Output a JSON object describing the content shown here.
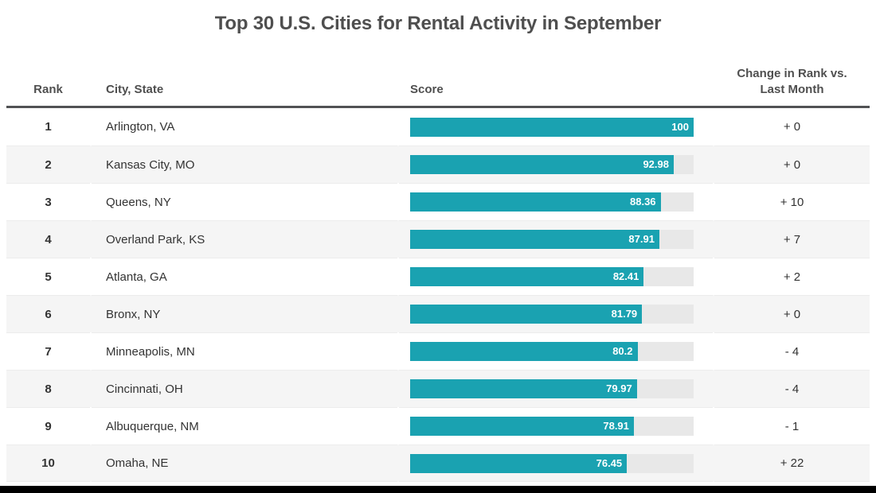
{
  "title": "Top 30 U.S. Cities for Rental Activity in September",
  "header": {
    "rank": "Rank",
    "city": "City, State",
    "score": "Score",
    "change_line1": "Change in Rank vs.",
    "change_line2": "Last Month"
  },
  "rows": [
    {
      "rank": "1",
      "city": "Arlington, VA",
      "score": 100,
      "score_label": "100",
      "change": "+ 0"
    },
    {
      "rank": "2",
      "city": "Kansas City, MO",
      "score": 92.98,
      "score_label": "92.98",
      "change": "+ 0"
    },
    {
      "rank": "3",
      "city": "Queens, NY",
      "score": 88.36,
      "score_label": "88.36",
      "change": "+ 10"
    },
    {
      "rank": "4",
      "city": "Overland Park, KS",
      "score": 87.91,
      "score_label": "87.91",
      "change": "+ 7"
    },
    {
      "rank": "5",
      "city": "Atlanta, GA",
      "score": 82.41,
      "score_label": "82.41",
      "change": "+ 2"
    },
    {
      "rank": "6",
      "city": "Bronx, NY",
      "score": 81.79,
      "score_label": "81.79",
      "change": "+ 0"
    },
    {
      "rank": "7",
      "city": "Minneapolis, MN",
      "score": 80.2,
      "score_label": "80.2",
      "change": "- 4"
    },
    {
      "rank": "8",
      "city": "Cincinnati, OH",
      "score": 79.97,
      "score_label": "79.97",
      "change": "- 4"
    },
    {
      "rank": "9",
      "city": "Albuquerque, NM",
      "score": 78.91,
      "score_label": "78.91",
      "change": "- 1"
    },
    {
      "rank": "10",
      "city": "Omaha, NE",
      "score": 76.45,
      "score_label": "76.45",
      "change": "+ 22"
    }
  ],
  "colors": {
    "bar_fill": "#1aa2b1",
    "bar_track": "#e8e8e8",
    "alt_row": "#f5f5f5",
    "header_rule": "#515254",
    "title_text": "#4f4f4f",
    "body_text": "#333333",
    "bar_label_text": "#ffffff",
    "bottom_bar": "#000000"
  },
  "chart_data": {
    "type": "bar",
    "orientation": "horizontal",
    "title": "Top 30 U.S. Cities for Rental Activity in September",
    "categories": [
      "Arlington, VA",
      "Kansas City, MO",
      "Queens, NY",
      "Overland Park, KS",
      "Atlanta, GA",
      "Bronx, NY",
      "Minneapolis, MN",
      "Cincinnati, OH",
      "Albuquerque, NM",
      "Omaha, NE"
    ],
    "ranks": [
      1,
      2,
      3,
      4,
      5,
      6,
      7,
      8,
      9,
      10
    ],
    "series": [
      {
        "name": "Score",
        "values": [
          100,
          92.98,
          88.36,
          87.91,
          82.41,
          81.79,
          80.2,
          79.97,
          78.91,
          76.45
        ]
      },
      {
        "name": "Change in Rank vs. Last Month",
        "values": [
          0,
          0,
          10,
          7,
          2,
          0,
          -4,
          -4,
          -1,
          22
        ]
      }
    ],
    "xlabel": "Score",
    "ylabel": "City, State",
    "xlim": [
      0,
      100
    ],
    "grid": false,
    "legend": false,
    "data_labels": true
  }
}
